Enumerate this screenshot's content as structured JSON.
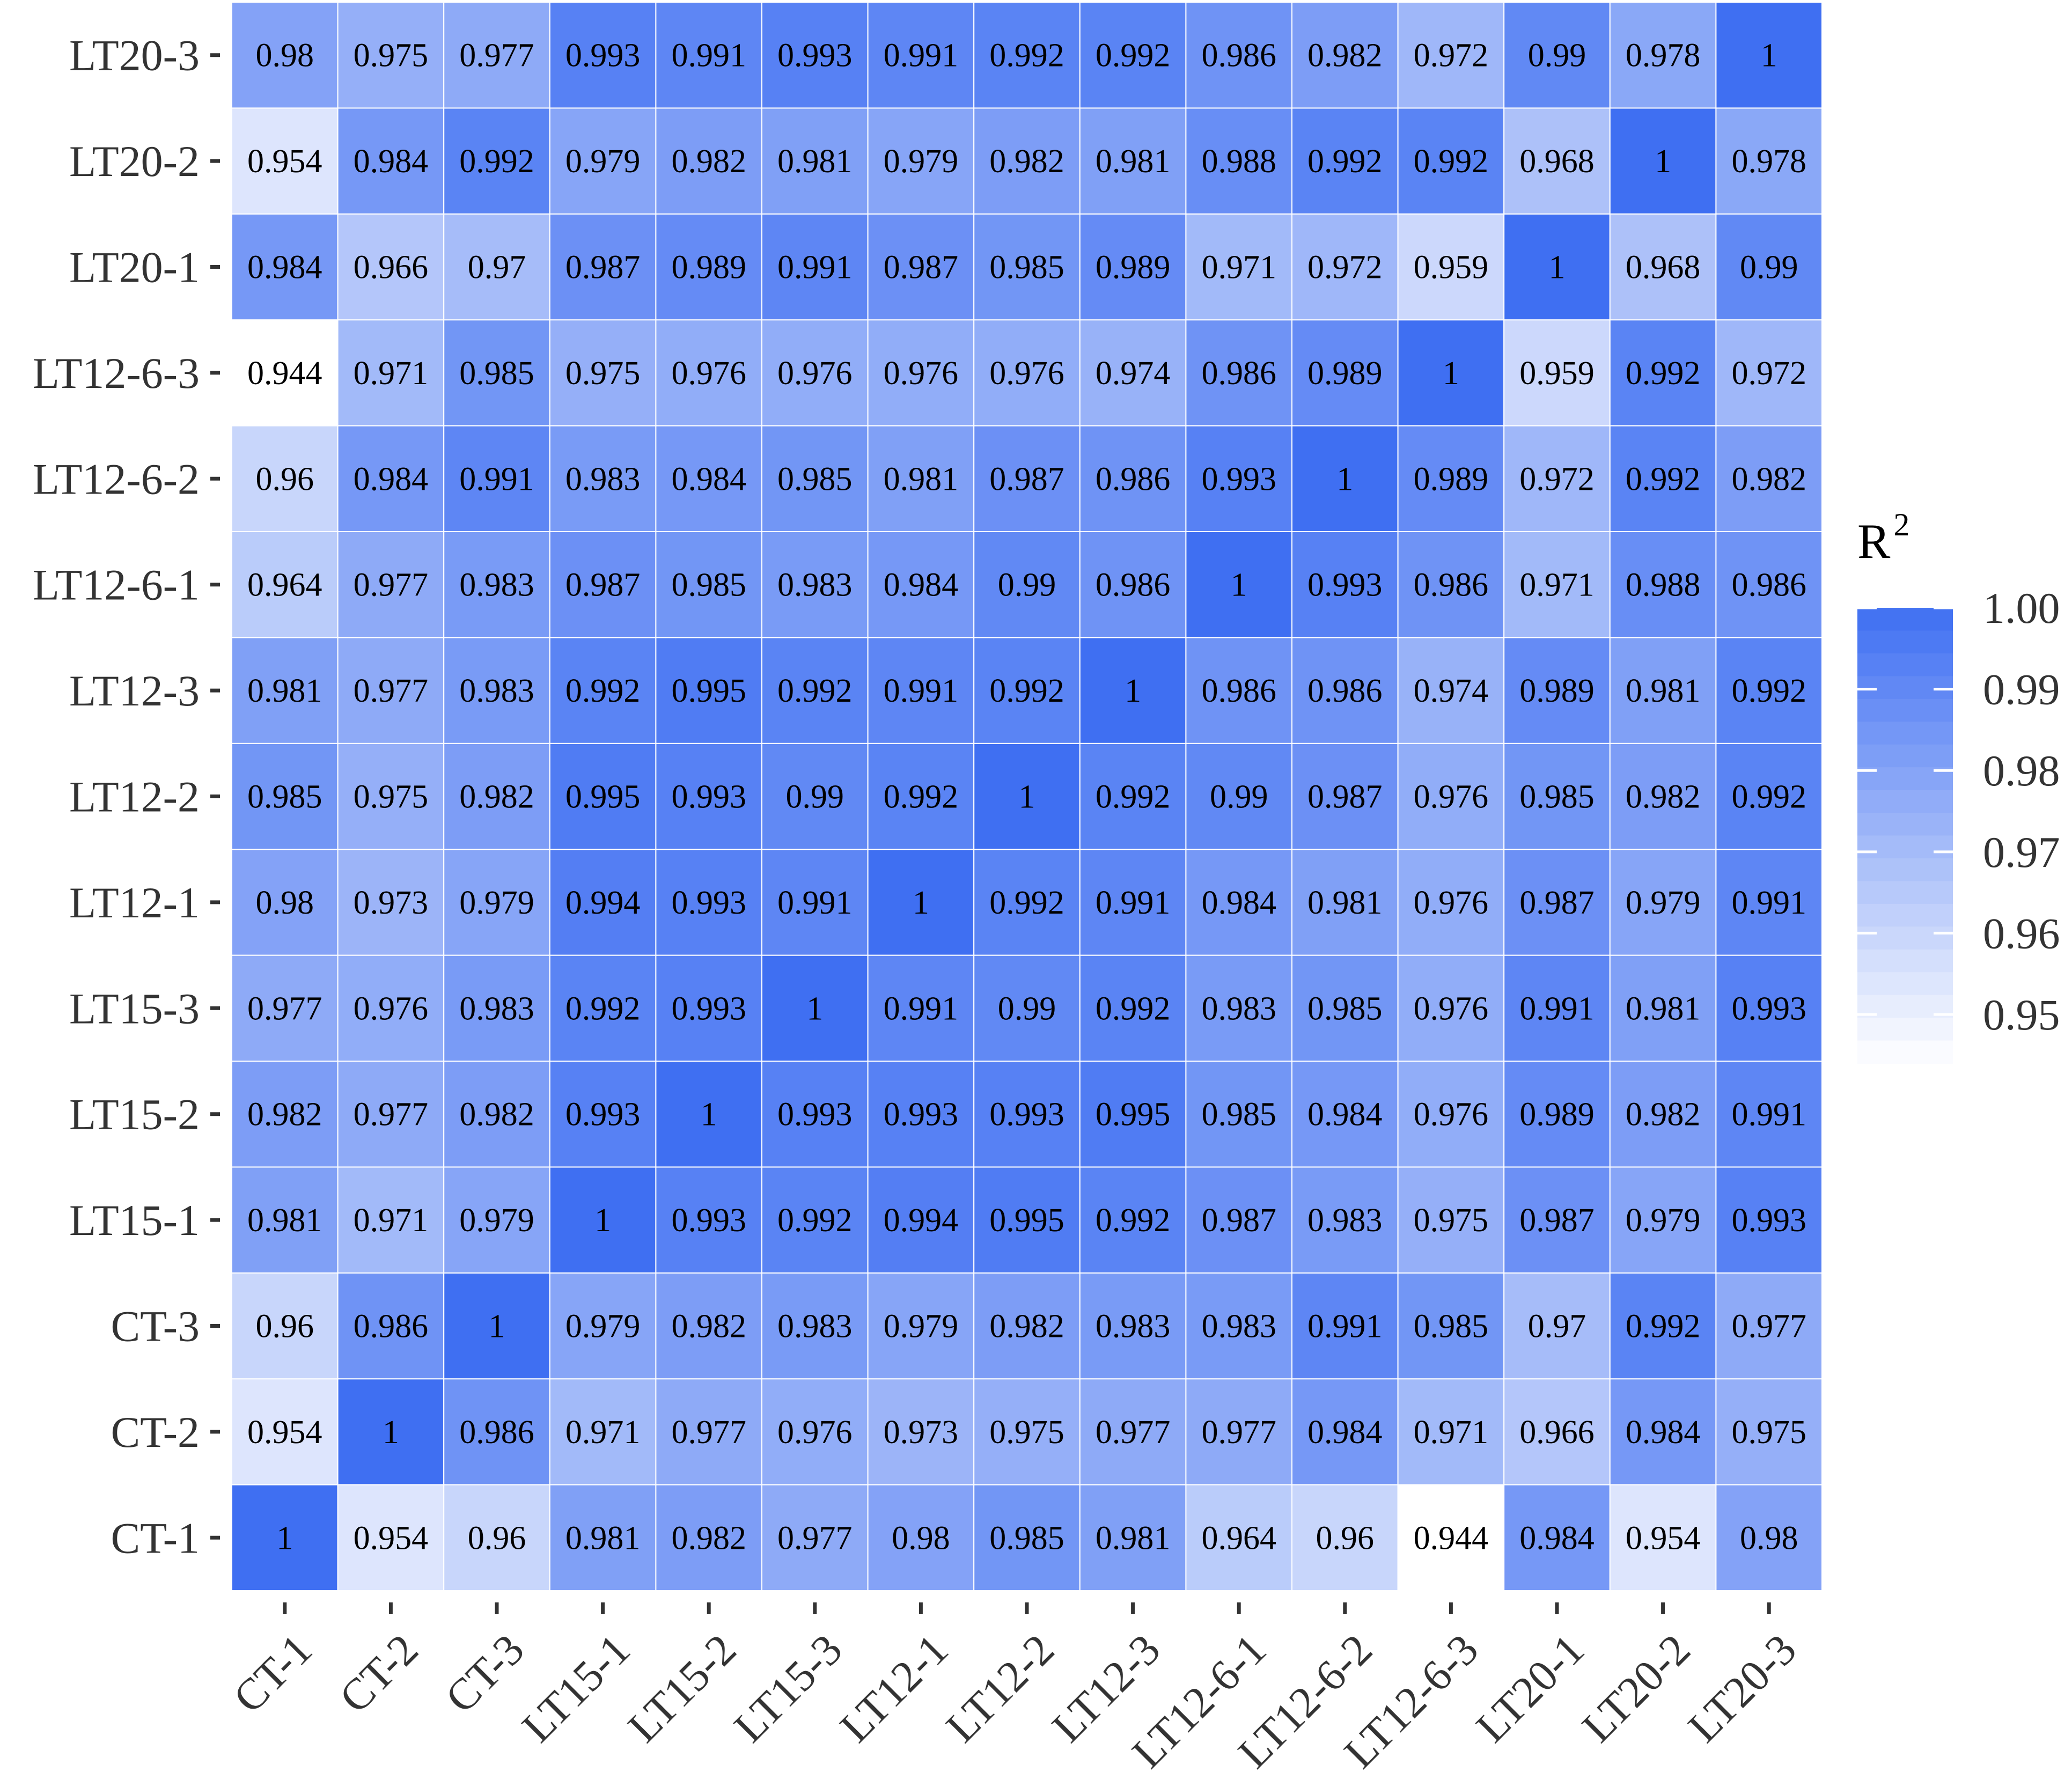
{
  "chart_data": {
    "type": "heatmap",
    "x_categories": [
      "CT-1",
      "CT-2",
      "CT-3",
      "LT15-1",
      "LT15-2",
      "LT15-3",
      "LT12-1",
      "LT12-2",
      "LT12-3",
      "LT12-6-1",
      "LT12-6-2",
      "LT12-6-3",
      "LT20-1",
      "LT20-2",
      "LT20-3"
    ],
    "y_categories": [
      "CT-1",
      "CT-2",
      "CT-3",
      "LT15-1",
      "LT15-2",
      "LT15-3",
      "LT12-1",
      "LT12-2",
      "LT12-3",
      "LT12-6-1",
      "LT12-6-2",
      "LT12-6-3",
      "LT20-1",
      "LT20-2",
      "LT20-3"
    ],
    "y_order": "bottom-to-top",
    "value_labels": [
      [
        "1",
        "0.954",
        "0.96",
        "0.981",
        "0.982",
        "0.977",
        "0.98",
        "0.985",
        "0.981",
        "0.964",
        "0.96",
        "0.944",
        "0.984",
        "0.954",
        "0.98"
      ],
      [
        "0.954",
        "1",
        "0.986",
        "0.971",
        "0.977",
        "0.976",
        "0.973",
        "0.975",
        "0.977",
        "0.977",
        "0.984",
        "0.971",
        "0.966",
        "0.984",
        "0.975"
      ],
      [
        "0.96",
        "0.986",
        "1",
        "0.979",
        "0.982",
        "0.983",
        "0.979",
        "0.982",
        "0.983",
        "0.983",
        "0.991",
        "0.985",
        "0.97",
        "0.992",
        "0.977"
      ],
      [
        "0.981",
        "0.971",
        "0.979",
        "1",
        "0.993",
        "0.992",
        "0.994",
        "0.995",
        "0.992",
        "0.987",
        "0.983",
        "0.975",
        "0.987",
        "0.979",
        "0.993"
      ],
      [
        "0.982",
        "0.977",
        "0.982",
        "0.993",
        "1",
        "0.993",
        "0.993",
        "0.993",
        "0.995",
        "0.985",
        "0.984",
        "0.976",
        "0.989",
        "0.982",
        "0.991"
      ],
      [
        "0.977",
        "0.976",
        "0.983",
        "0.992",
        "0.993",
        "1",
        "0.991",
        "0.99",
        "0.992",
        "0.983",
        "0.985",
        "0.976",
        "0.991",
        "0.981",
        "0.993"
      ],
      [
        "0.98",
        "0.973",
        "0.979",
        "0.994",
        "0.993",
        "0.991",
        "1",
        "0.992",
        "0.991",
        "0.984",
        "0.981",
        "0.976",
        "0.987",
        "0.979",
        "0.991"
      ],
      [
        "0.985",
        "0.975",
        "0.982",
        "0.995",
        "0.993",
        "0.99",
        "0.992",
        "1",
        "0.992",
        "0.99",
        "0.987",
        "0.976",
        "0.985",
        "0.982",
        "0.992"
      ],
      [
        "0.981",
        "0.977",
        "0.983",
        "0.992",
        "0.995",
        "0.992",
        "0.991",
        "0.992",
        "1",
        "0.986",
        "0.986",
        "0.974",
        "0.989",
        "0.981",
        "0.992"
      ],
      [
        "0.964",
        "0.977",
        "0.983",
        "0.987",
        "0.985",
        "0.983",
        "0.984",
        "0.99",
        "0.986",
        "1",
        "0.993",
        "0.986",
        "0.971",
        "0.988",
        "0.986"
      ],
      [
        "0.96",
        "0.984",
        "0.991",
        "0.983",
        "0.984",
        "0.985",
        "0.981",
        "0.987",
        "0.986",
        "0.993",
        "1",
        "0.989",
        "0.972",
        "0.992",
        "0.982"
      ],
      [
        "0.944",
        "0.971",
        "0.985",
        "0.975",
        "0.976",
        "0.976",
        "0.976",
        "0.976",
        "0.974",
        "0.986",
        "0.989",
        "1",
        "0.959",
        "0.992",
        "0.972"
      ],
      [
        "0.984",
        "0.966",
        "0.97",
        "0.987",
        "0.989",
        "0.991",
        "0.987",
        "0.985",
        "0.989",
        "0.971",
        "0.972",
        "0.959",
        "1",
        "0.968",
        "0.99"
      ],
      [
        "0.954",
        "0.984",
        "0.992",
        "0.979",
        "0.982",
        "0.981",
        "0.979",
        "0.982",
        "0.981",
        "0.988",
        "0.992",
        "0.992",
        "0.968",
        "1",
        "0.978"
      ],
      [
        "0.98",
        "0.975",
        "0.977",
        "0.993",
        "0.991",
        "0.993",
        "0.991",
        "0.992",
        "0.992",
        "0.986",
        "0.982",
        "0.972",
        "0.99",
        "0.978",
        "1"
      ]
    ],
    "legend": {
      "title": "R",
      "title_superscript": "2",
      "tick_labels": [
        "1.00",
        "0.99",
        "0.98",
        "0.97",
        "0.96",
        "0.95"
      ],
      "tick_values": [
        1.0,
        0.99,
        0.98,
        0.97,
        0.96,
        0.95
      ],
      "range": [
        0.944,
        1.0
      ],
      "placement": "right"
    },
    "colormap": {
      "low": "#ffffff",
      "high": "#3f6ff2"
    },
    "grid": true
  }
}
